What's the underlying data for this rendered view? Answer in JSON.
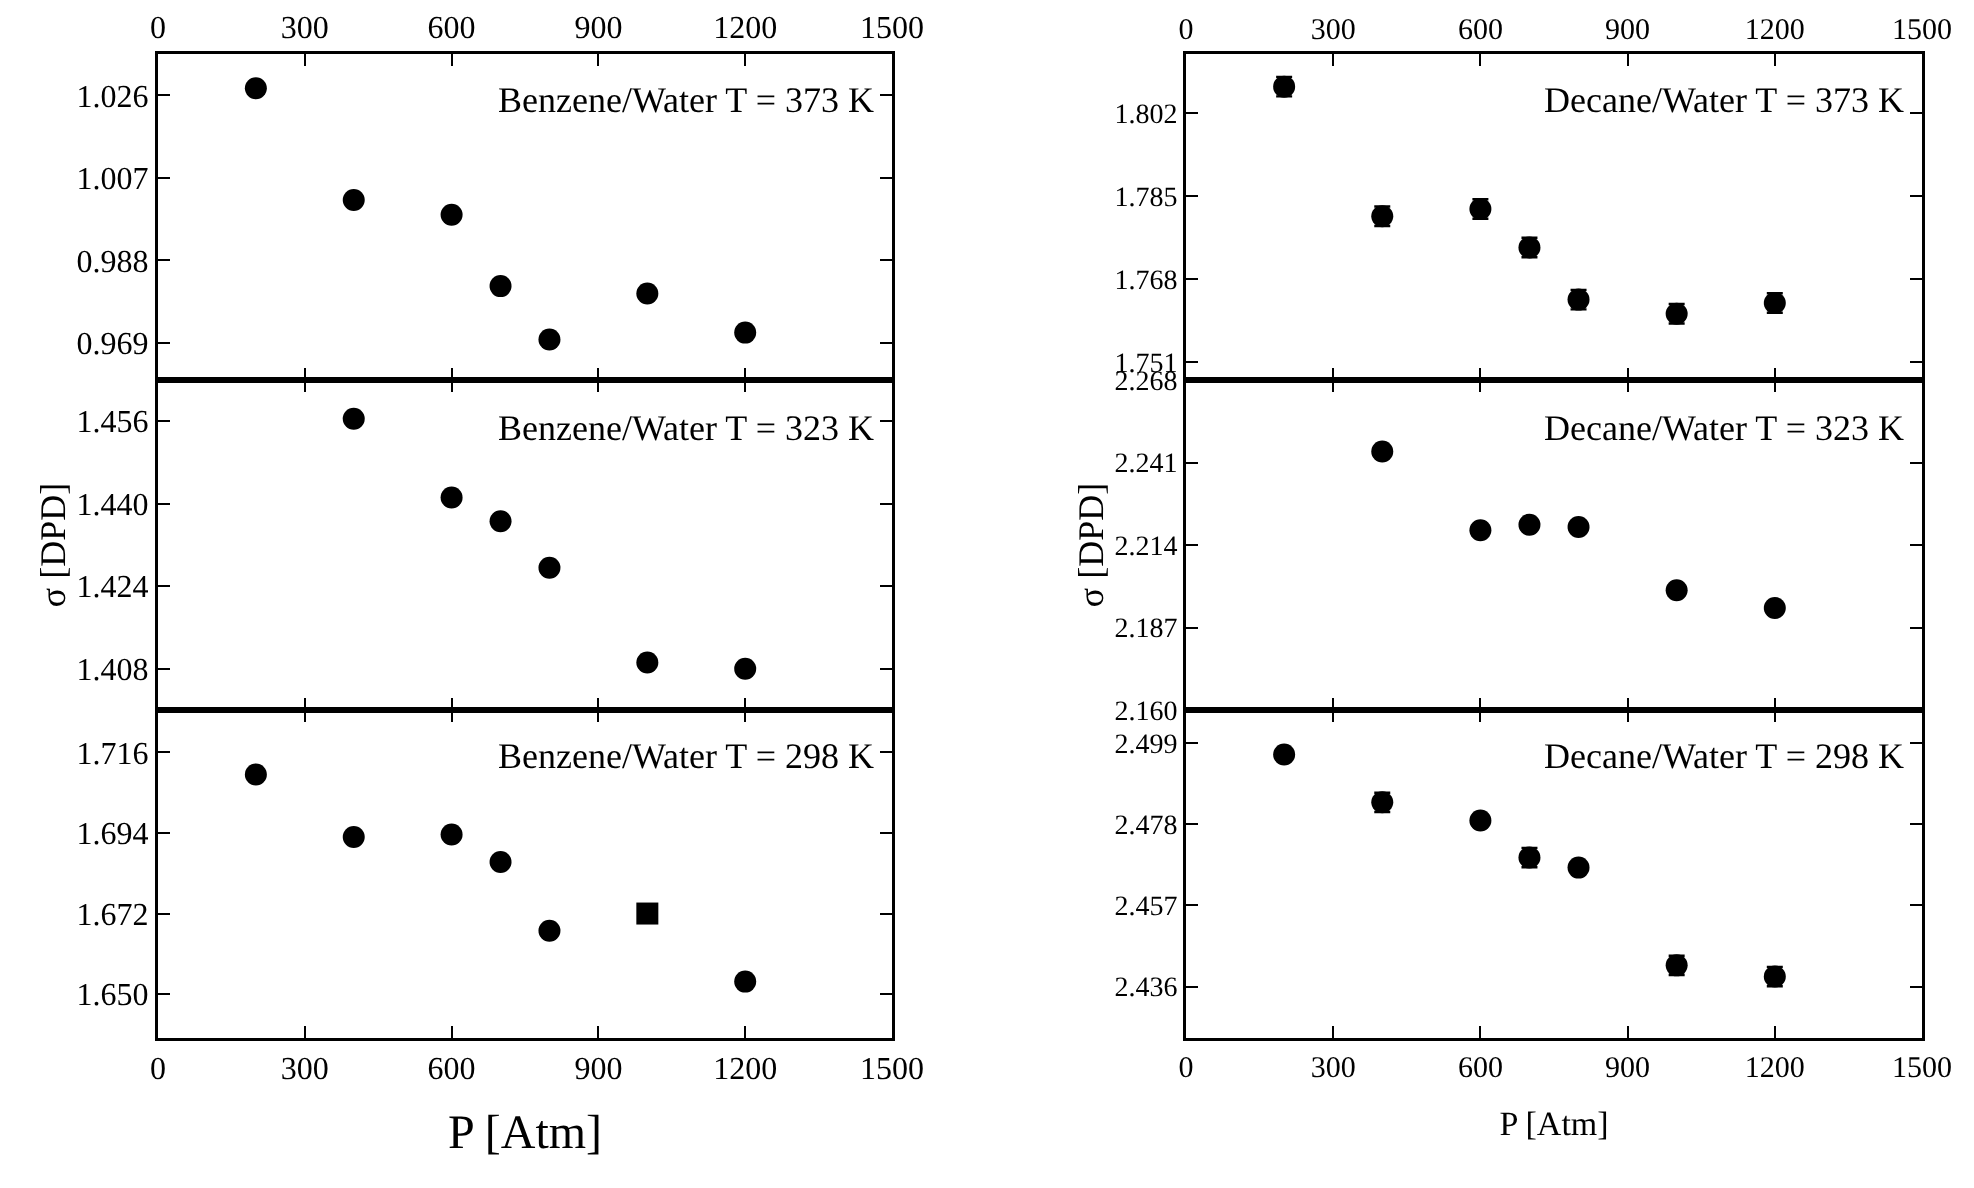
{
  "chart_data": [
    {
      "type": "scatter",
      "title": "Benzene/Water T = 373 K",
      "xlim": [
        0,
        1500
      ],
      "xticks": [
        0,
        300,
        600,
        900,
        1200,
        1500
      ],
      "ylim": [
        0.9605,
        1.0355
      ],
      "yticks": [
        0.969,
        0.988,
        1.007,
        1.026
      ],
      "series": [
        {
          "color": "#000000",
          "marker": "circle",
          "x": [
            200,
            400,
            600,
            700,
            800,
            1000,
            1200
          ],
          "values": [
            1.0276,
            1.0019,
            0.9985,
            0.9821,
            0.9698,
            0.9804,
            0.9714
          ]
        }
      ]
    },
    {
      "type": "scatter",
      "title": "Decane/Water T = 373 K",
      "xlim": [
        0,
        1500
      ],
      "xticks": [
        0,
        300,
        600,
        900,
        1200,
        1500
      ],
      "ylim": [
        1.7473,
        1.8142
      ],
      "yticks": [
        1.751,
        1.768,
        1.785,
        1.802
      ],
      "series": [
        {
          "color": "#000000",
          "marker": "circle",
          "x": [
            200,
            400,
            600,
            700,
            800,
            1000,
            1200
          ],
          "values": [
            1.8075,
            1.7809,
            1.7824,
            1.7745,
            1.7638,
            1.7609,
            1.7631
          ],
          "errors": [
            0.002,
            0.002,
            0.002,
            0.002,
            0.002,
            0.002,
            0.002
          ]
        }
      ]
    },
    {
      "type": "scatter",
      "title": "Benzene/Water T = 323 K",
      "ylabel": "σ [DPD]",
      "xlim": [
        0,
        1500
      ],
      "xticks": [
        0,
        300,
        600,
        900,
        1200,
        1500
      ],
      "tick_labels": "y",
      "ylim": [
        1.4,
        1.464
      ],
      "yticks": [
        1.408,
        1.424,
        {
          "value": 1.44,
          "label": "1.440"
        },
        1.456
      ],
      "series": [
        {
          "color": "#000000",
          "marker": "circle",
          "x": [
            400,
            600,
            700,
            800,
            1000,
            1200
          ],
          "values": [
            1.4565,
            1.4412,
            1.4366,
            1.4276,
            1.4092,
            1.408
          ]
        }
      ]
    },
    {
      "type": "scatter",
      "title": "Decane/Water T = 323 K",
      "ylabel": "σ [DPD]",
      "xlim": [
        0,
        1500
      ],
      "xticks": [
        0,
        300,
        600,
        900,
        1200,
        1500
      ],
      "tick_labels": "y",
      "ylim": [
        2.16,
        2.268
      ],
      "yticks": [
        {
          "value": 2.16,
          "label": "2.160"
        },
        2.187,
        2.214,
        2.241,
        2.268
      ],
      "series": [
        {
          "color": "#000000",
          "marker": "circle",
          "x": [
            400,
            600,
            700,
            800,
            1000,
            1200
          ],
          "values": [
            2.2446,
            2.2188,
            2.2206,
            2.2199,
            2.1992,
            2.1934
          ]
        }
      ]
    },
    {
      "type": "scatter",
      "title": "Benzene/Water T = 298 K",
      "xlabel": "P [Atm]",
      "xlim": [
        0,
        1500
      ],
      "xticks": [
        0,
        300,
        600,
        900,
        1200,
        1500
      ],
      "ylim": [
        1.638,
        1.7276
      ],
      "yticks": [
        {
          "value": 1.65,
          "label": "1.650"
        },
        1.672,
        1.694,
        1.716
      ],
      "series": [
        {
          "color": "#000000",
          "marker": "circle",
          "x": [
            200,
            400,
            600,
            700,
            800,
            1200
          ],
          "values": [
            1.71,
            1.6929,
            1.6936,
            1.6861,
            1.6673,
            1.6534
          ]
        },
        {
          "color": "#000000",
          "marker": "square",
          "x": [
            1000
          ],
          "values": [
            1.672
          ]
        }
      ]
    },
    {
      "type": "scatter",
      "title": "Decane/Water T = 298 K",
      "xlabel": "P [Atm]",
      "xlim": [
        0,
        1500
      ],
      "xticks": [
        0,
        300,
        600,
        900,
        1200,
        1500
      ],
      "ylim": [
        2.4227,
        2.5076
      ],
      "yticks": [
        2.436,
        2.457,
        2.478,
        2.499
      ],
      "series": [
        {
          "color": "#000000",
          "marker": "circle",
          "x": [
            200,
            400,
            600,
            700,
            800,
            1000,
            1200
          ],
          "values": [
            2.4961,
            2.4837,
            2.479,
            2.4694,
            2.4668,
            2.4415,
            2.4386
          ],
          "errors": [
            null,
            0.0025,
            0.0015,
            0.0025,
            null,
            0.0025,
            0.0025
          ]
        }
      ]
    }
  ]
}
